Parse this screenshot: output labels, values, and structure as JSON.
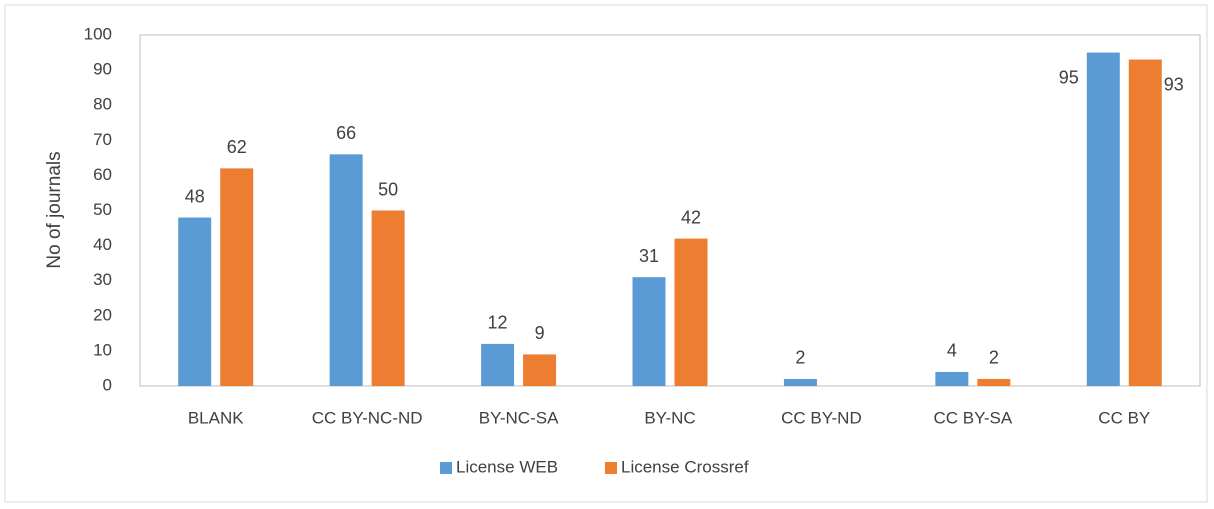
{
  "chart_data": {
    "type": "bar",
    "y_label": "No of journals",
    "categories": [
      "BLANK",
      "CC BY-NC-ND",
      "BY-NC-SA",
      "BY-NC",
      "CC BY-ND",
      "CC BY-SA",
      "CC BY"
    ],
    "series": [
      {
        "name": "License WEB",
        "color": "#5b9bd5",
        "values": [
          48,
          66,
          12,
          31,
          2,
          4,
          95
        ]
      },
      {
        "name": "License Crossref",
        "color": "#ed7d31",
        "values": [
          62,
          50,
          9,
          42,
          null,
          2,
          93
        ]
      }
    ],
    "ylim": [
      0,
      100
    ],
    "yticks": [
      0,
      10,
      20,
      30,
      40,
      50,
      60,
      70,
      80,
      90,
      100
    ],
    "grid": false,
    "legend": "bottom"
  }
}
